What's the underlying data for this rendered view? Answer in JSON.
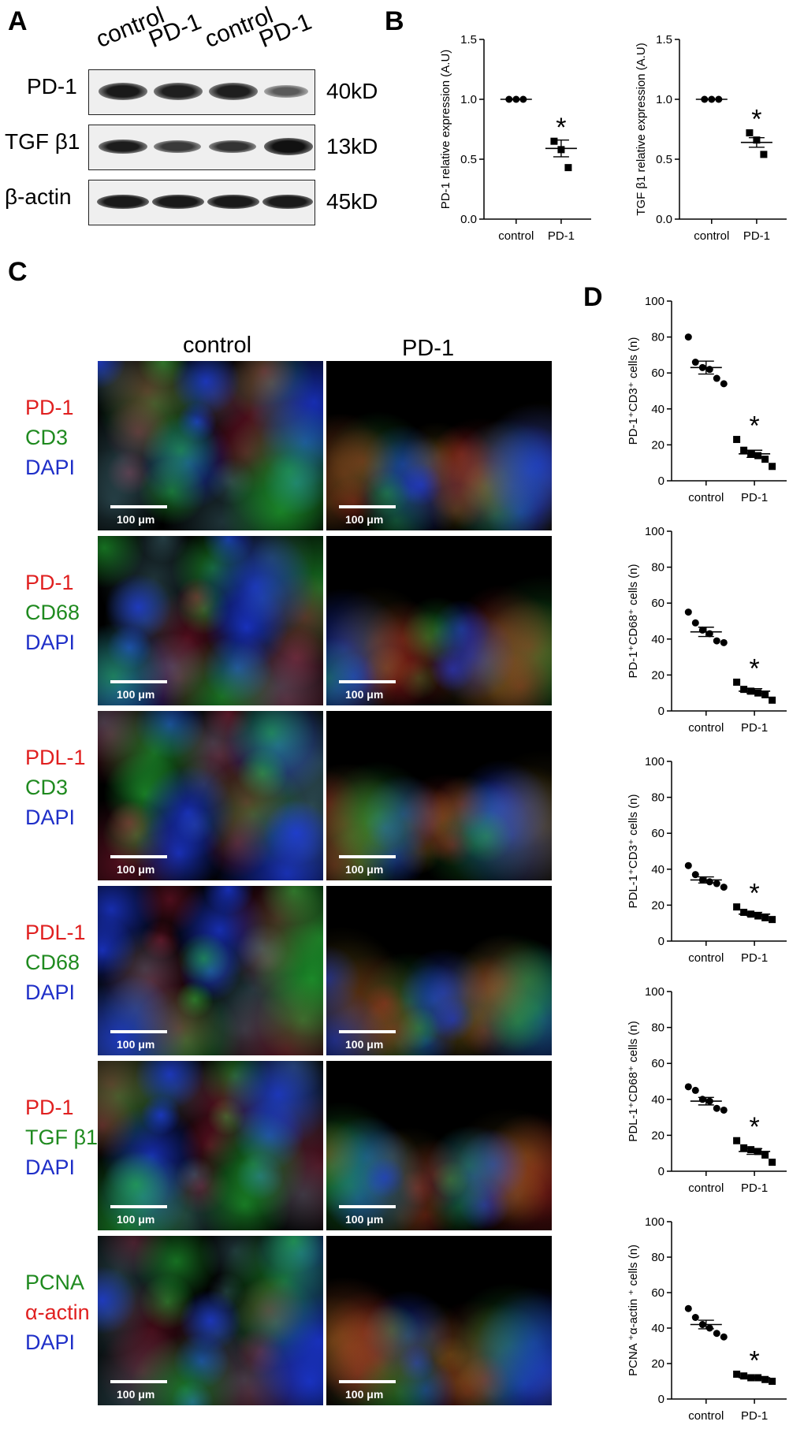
{
  "panels": {
    "A": "A",
    "B": "B",
    "C": "C",
    "D": "D"
  },
  "colors": {
    "red": "#e02020",
    "green": "#1f8a1f",
    "blue": "#1f2fc8"
  },
  "blot": {
    "lanes": [
      "control",
      "PD-1",
      "control",
      "PD-1"
    ],
    "rows": [
      {
        "label": "PD-1",
        "size": "40kD"
      },
      {
        "label": "TGF β1",
        "size": "13kD"
      },
      {
        "label": "β-actin",
        "size": "45kD"
      }
    ]
  },
  "micro": {
    "columns": [
      "control",
      "PD-1"
    ],
    "scale": "100 μm",
    "rows": [
      {
        "channels": [
          {
            "text": "PD-1",
            "color": "red"
          },
          {
            "text": "CD3",
            "color": "green"
          },
          {
            "text": "DAPI",
            "color": "blue"
          }
        ]
      },
      {
        "channels": [
          {
            "text": "PD-1",
            "color": "red"
          },
          {
            "text": "CD68",
            "color": "green"
          },
          {
            "text": "DAPI",
            "color": "blue"
          }
        ]
      },
      {
        "channels": [
          {
            "text": "PDL-1",
            "color": "red"
          },
          {
            "text": "CD3",
            "color": "green"
          },
          {
            "text": "DAPI",
            "color": "blue"
          }
        ]
      },
      {
        "channels": [
          {
            "text": "PDL-1",
            "color": "red"
          },
          {
            "text": "CD68",
            "color": "green"
          },
          {
            "text": "DAPI",
            "color": "blue"
          }
        ]
      },
      {
        "channels": [
          {
            "text": "PD-1",
            "color": "red"
          },
          {
            "text": "TGF β1",
            "color": "green"
          },
          {
            "text": "DAPI",
            "color": "blue"
          }
        ]
      },
      {
        "channels": [
          {
            "text": "PCNA",
            "color": "green"
          },
          {
            "text": "α-actin",
            "color": "red"
          },
          {
            "text": "DAPI",
            "color": "blue"
          }
        ]
      }
    ]
  },
  "chart_data": [
    {
      "type": "scatter",
      "panel": "B",
      "ylabel": "PD-1 relative expression (A.U)",
      "categories": [
        "control",
        "PD-1"
      ],
      "ylim": [
        0,
        1.5
      ],
      "yticks": [
        "0.0",
        "0.5",
        "1.0",
        "1.5"
      ],
      "points": [
        [
          1.0,
          1.0,
          1.0
        ],
        [
          0.65,
          0.58,
          0.43
        ]
      ],
      "mean": [
        1.0,
        0.59
      ],
      "sem": [
        0.0,
        0.07
      ],
      "marker": [
        "circle",
        "square"
      ],
      "annotation": [
        "",
        "*"
      ]
    },
    {
      "type": "scatter",
      "panel": "B",
      "ylabel": "TGF β1 relative expression (A.U)",
      "categories": [
        "control",
        "PD-1"
      ],
      "ylim": [
        0,
        1.5
      ],
      "yticks": [
        "0.0",
        "0.5",
        "1.0",
        "1.5"
      ],
      "points": [
        [
          1.0,
          1.0,
          1.0
        ],
        [
          0.72,
          0.66,
          0.54
        ]
      ],
      "mean": [
        1.0,
        0.64
      ],
      "sem": [
        0.0,
        0.04
      ],
      "marker": [
        "circle",
        "square"
      ],
      "annotation": [
        "",
        "*"
      ]
    },
    {
      "type": "scatter",
      "panel": "D",
      "ylabel": "PD-1⁺CD3⁺ cells (n)",
      "categories": [
        "control",
        "PD-1"
      ],
      "ylim": [
        0,
        100
      ],
      "yticks": [
        "0",
        "20",
        "40",
        "60",
        "80",
        "100"
      ],
      "points": [
        [
          80,
          66,
          63,
          62,
          57,
          54
        ],
        [
          23,
          17,
          15,
          14,
          12,
          8
        ]
      ],
      "mean": [
        63,
        15
      ],
      "sem": [
        3.6,
        2.0
      ],
      "marker": [
        "circle",
        "square"
      ],
      "annotation": [
        "",
        "*"
      ]
    },
    {
      "type": "scatter",
      "panel": "D",
      "ylabel": "PD-1⁺CD68⁺ cells (n)",
      "categories": [
        "control",
        "PD-1"
      ],
      "ylim": [
        0,
        100
      ],
      "yticks": [
        "0",
        "20",
        "40",
        "60",
        "80",
        "100"
      ],
      "points": [
        [
          55,
          49,
          45,
          43,
          39,
          38
        ],
        [
          16,
          12,
          11,
          10,
          9,
          6
        ]
      ],
      "mean": [
        44,
        11
      ],
      "sem": [
        2.6,
        1.4
      ],
      "marker": [
        "circle",
        "square"
      ],
      "annotation": [
        "",
        "*"
      ]
    },
    {
      "type": "scatter",
      "panel": "D",
      "ylabel": "PDL-1⁺CD3⁺ cells (n)",
      "categories": [
        "control",
        "PD-1"
      ],
      "ylim": [
        0,
        100
      ],
      "yticks": [
        "0",
        "20",
        "40",
        "60",
        "80",
        "100"
      ],
      "points": [
        [
          42,
          37,
          34,
          33,
          32,
          30
        ],
        [
          19,
          16,
          15,
          14,
          13,
          12
        ]
      ],
      "mean": [
        34,
        15
      ],
      "sem": [
        1.7,
        1.0
      ],
      "marker": [
        "circle",
        "square"
      ],
      "annotation": [
        "",
        "*"
      ]
    },
    {
      "type": "scatter",
      "panel": "D",
      "ylabel": "PDL-1⁺CD68⁺ cells (n)",
      "categories": [
        "control",
        "PD-1"
      ],
      "ylim": [
        0,
        100
      ],
      "yticks": [
        "0",
        "20",
        "40",
        "60",
        "80",
        "100"
      ],
      "points": [
        [
          47,
          45,
          40,
          39,
          35,
          34
        ],
        [
          17,
          13,
          12,
          11,
          9,
          5
        ]
      ],
      "mean": [
        39,
        11
      ],
      "sem": [
        2.1,
        1.6
      ],
      "marker": [
        "circle",
        "square"
      ],
      "annotation": [
        "",
        "*"
      ]
    },
    {
      "type": "scatter",
      "panel": "D",
      "ylabel": "PCNA ⁺α-actin ⁺ cells (n)",
      "categories": [
        "control",
        "PD-1"
      ],
      "ylim": [
        0,
        100
      ],
      "yticks": [
        "0",
        "20",
        "40",
        "60",
        "80",
        "100"
      ],
      "points": [
        [
          51,
          46,
          42,
          40,
          37,
          35
        ],
        [
          14,
          13,
          12,
          12,
          11,
          10
        ]
      ],
      "mean": [
        42,
        12
      ],
      "sem": [
        2.4,
        0.6
      ],
      "marker": [
        "circle",
        "square"
      ],
      "annotation": [
        "",
        "*"
      ]
    }
  ]
}
